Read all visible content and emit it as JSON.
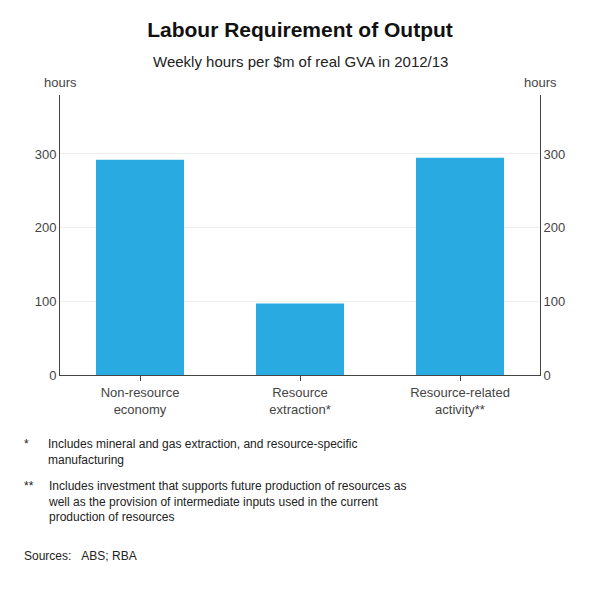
{
  "chart_data": {
    "type": "bar",
    "title": "Labour Requirement of Output",
    "subtitle": "Weekly hours per $m of real GVA in 2012/13",
    "categories": [
      "Non-resource\neconomy",
      "Resource\nextraction*",
      "Resource-related\nactivity**"
    ],
    "values": [
      292,
      97,
      295
    ],
    "color": "#29ABE2",
    "ylabel": "hours",
    "y2label": "hours",
    "ylim": [
      0,
      380
    ],
    "yticks": [
      0,
      100,
      200,
      300
    ],
    "y2lim": [
      0,
      380
    ],
    "y2ticks": [
      0,
      100,
      200,
      300
    ],
    "grid": true,
    "annotations": [
      "*",
      "Includes mineral and gas extraction, and resource-specific\nmanufacturing",
      "**",
      "Includes investment that supports future production of resources as\nwell as the provision of intermediate inputs used in the current\nproduction of resources",
      "Sources:   ABS; RBA"
    ]
  }
}
